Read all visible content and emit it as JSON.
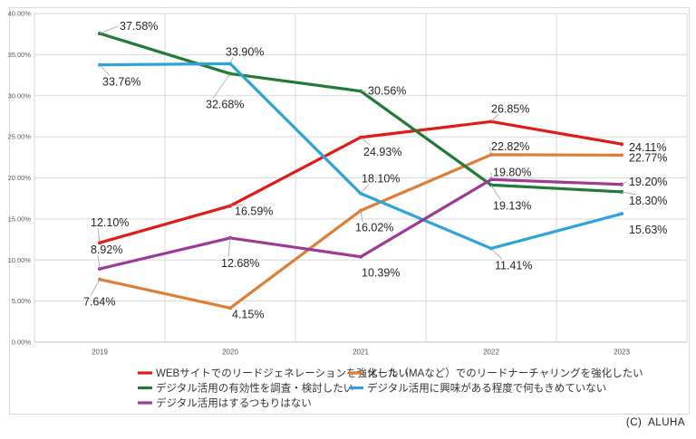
{
  "chart_data": {
    "type": "line",
    "x": [
      "2019",
      "2020",
      "2021",
      "2022",
      "2023"
    ],
    "series": [
      {
        "name": "WEBサイトでのリードジェネレーションを強化したい",
        "color": "#e01b16",
        "values": [
          12.1,
          16.59,
          24.93,
          26.85,
          24.11
        ]
      },
      {
        "name": "メール（MAなど）でのリードナーチャリングを強化したい",
        "color": "#de7e35",
        "values": [
          7.64,
          4.15,
          16.02,
          22.82,
          22.77
        ]
      },
      {
        "name": "デジタル活用の有効性を調査・検討したい",
        "color": "#217a36",
        "values": [
          37.58,
          32.68,
          30.56,
          19.13,
          18.3
        ]
      },
      {
        "name": "デジタル活用に興味がある程度で何もきめていない",
        "color": "#2ca3dc",
        "values": [
          33.76,
          33.9,
          18.1,
          11.41,
          15.63
        ]
      },
      {
        "name": "デジタル活用はするつもりはない",
        "color": "#9c3a96",
        "values": [
          8.92,
          12.68,
          10.39,
          19.8,
          19.2
        ]
      }
    ],
    "ylim": [
      0,
      40
    ],
    "ytick_step": 5,
    "ytick_labels": [
      "0.00%",
      "5.00%",
      "10.00%",
      "15.00%",
      "20.00%",
      "25.00%",
      "30.00%",
      "35.00%",
      "40.00%"
    ],
    "grid": true,
    "legend_position": "bottom",
    "data_labels": true,
    "label_suffix": "%",
    "series_label_offsets": [
      [
        [
          -10,
          -18,
          1
        ],
        [
          5,
          10,
          1
        ],
        [
          3,
          20,
          1
        ],
        [
          0,
          -10,
          1
        ],
        [
          8,
          8,
          0
        ]
      ],
      [
        [
          -18,
          29,
          1
        ],
        [
          2,
          11,
          0
        ],
        [
          -6,
          23,
          1
        ],
        [
          0,
          -5,
          1
        ],
        [
          8,
          7,
          0
        ]
      ],
      [
        [
          22,
          -4,
          1
        ],
        [
          -27,
          38,
          1
        ],
        [
          8,
          4,
          1
        ],
        [
          2,
          27,
          1
        ],
        [
          8,
          14,
          1
        ]
      ],
      [
        [
          3,
          23,
          1
        ],
        [
          -5,
          -9,
          1
        ],
        [
          1,
          -12,
          1
        ],
        [
          4,
          23,
          1
        ],
        [
          8,
          22,
          0
        ]
      ],
      [
        [
          -10,
          -17,
          1
        ],
        [
          -10,
          32,
          1
        ],
        [
          1,
          22,
          0
        ],
        [
          2,
          -4,
          1
        ],
        [
          8,
          1,
          1
        ]
      ]
    ],
    "colors": {
      "gridline": "#d9d9d9",
      "axis_line": "#bfbfbf",
      "tick_text": "#595959",
      "data_label_text": "#262626",
      "legend_text": "#333333",
      "leader_line": "#a6a6a6",
      "frame_border": "#d9d9d9"
    }
  },
  "footer": {
    "copyright": "(C)  ALUHA"
  }
}
